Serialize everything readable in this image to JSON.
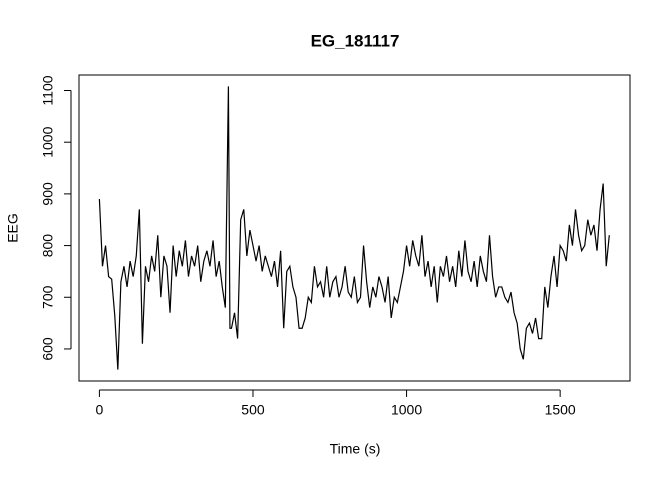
{
  "chart_data": {
    "type": "line",
    "title": "EG_181117",
    "x_label": "Time (s)",
    "y_label": "EEG",
    "color": "#000000",
    "x": [
      0,
      10,
      20,
      30,
      40,
      50,
      60,
      70,
      80,
      90,
      100,
      110,
      120,
      130,
      140,
      150,
      160,
      170,
      180,
      190,
      200,
      210,
      220,
      230,
      240,
      250,
      260,
      270,
      280,
      290,
      300,
      310,
      320,
      330,
      340,
      350,
      360,
      370,
      380,
      390,
      400,
      410,
      420,
      425,
      430,
      440,
      450,
      460,
      470,
      480,
      490,
      500,
      510,
      520,
      530,
      540,
      550,
      560,
      570,
      580,
      590,
      600,
      610,
      620,
      630,
      640,
      650,
      660,
      670,
      680,
      690,
      700,
      710,
      720,
      730,
      740,
      750,
      760,
      770,
      780,
      790,
      800,
      810,
      820,
      830,
      840,
      850,
      860,
      870,
      880,
      890,
      900,
      910,
      920,
      930,
      940,
      950,
      960,
      970,
      980,
      990,
      1000,
      1010,
      1020,
      1030,
      1040,
      1050,
      1060,
      1070,
      1080,
      1090,
      1100,
      1110,
      1120,
      1130,
      1140,
      1150,
      1160,
      1170,
      1180,
      1190,
      1200,
      1210,
      1220,
      1230,
      1240,
      1250,
      1260,
      1270,
      1280,
      1290,
      1300,
      1310,
      1320,
      1330,
      1340,
      1350,
      1360,
      1370,
      1380,
      1390,
      1400,
      1410,
      1420,
      1430,
      1440,
      1450,
      1460,
      1470,
      1480,
      1490,
      1500,
      1510,
      1520,
      1530,
      1540,
      1550,
      1560,
      1570,
      1580,
      1590,
      1600,
      1610,
      1620,
      1630,
      1640,
      1650,
      1660
    ],
    "values": [
      890,
      760,
      800,
      740,
      735,
      665,
      560,
      730,
      760,
      720,
      770,
      740,
      780,
      870,
      610,
      760,
      730,
      780,
      750,
      820,
      700,
      780,
      760,
      670,
      800,
      740,
      790,
      760,
      810,
      740,
      780,
      760,
      800,
      730,
      770,
      790,
      760,
      810,
      740,
      770,
      720,
      680,
      1108,
      640,
      640,
      670,
      620,
      850,
      870,
      780,
      830,
      800,
      770,
      800,
      750,
      780,
      760,
      740,
      770,
      720,
      790,
      640,
      750,
      760,
      720,
      700,
      640,
      640,
      660,
      700,
      690,
      760,
      720,
      730,
      700,
      760,
      700,
      730,
      740,
      700,
      720,
      760,
      710,
      700,
      740,
      690,
      700,
      800,
      730,
      680,
      720,
      700,
      740,
      720,
      690,
      740,
      660,
      700,
      690,
      720,
      750,
      800,
      760,
      810,
      780,
      760,
      820,
      740,
      770,
      720,
      760,
      690,
      760,
      740,
      780,
      730,
      760,
      720,
      790,
      740,
      810,
      750,
      730,
      770,
      720,
      780,
      750,
      730,
      820,
      740,
      700,
      720,
      720,
      700,
      690,
      710,
      670,
      650,
      600,
      580,
      640,
      650,
      630,
      660,
      620,
      620,
      720,
      680,
      740,
      780,
      720,
      800,
      790,
      770,
      840,
      800,
      870,
      820,
      790,
      800,
      850,
      820,
      840,
      790,
      870,
      920,
      760,
      820
    ],
    "xlim": [
      -66.4,
      1727.4
    ],
    "ylim": [
      538,
      1130
    ],
    "xticks": [
      0,
      500,
      1000,
      1500
    ],
    "yticks": [
      600,
      700,
      800,
      900,
      1000,
      1100
    ]
  }
}
